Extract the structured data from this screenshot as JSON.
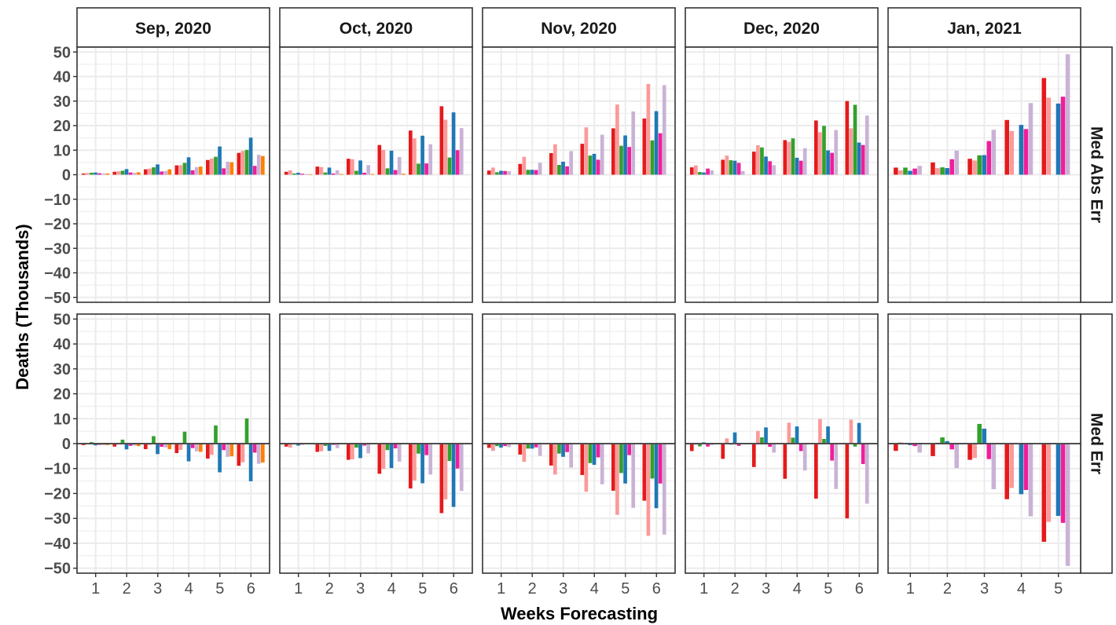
{
  "chart_data": {
    "type": "bar",
    "xlabel": "Weeks Forecasting",
    "ylabel": "Deaths (Thousands)",
    "ylim": [
      -52,
      52
    ],
    "yticks": [
      -50,
      -40,
      -30,
      -20,
      -10,
      0,
      10,
      20,
      30,
      40,
      50
    ],
    "y_tick_labels": [
      "−50",
      "−40",
      "−30",
      "−20",
      "−10",
      "0",
      "10",
      "20",
      "30",
      "40",
      "50"
    ],
    "grid": true,
    "legend": "none",
    "row_facets": [
      "Med Abs Err",
      "Med Err"
    ],
    "column_facets": [
      "Sep, 2020",
      "Oct, 2020",
      "Nov, 2020",
      "Dec, 2020",
      "Jan, 2021"
    ],
    "series_colors": [
      "#E41A1C",
      "#FB9A99",
      "#33A02C",
      "#1F78B4",
      "#F01E9B",
      "#CAB2D6",
      "#FF7F00"
    ],
    "panels": [
      {
        "month": "Sep, 2020",
        "weeks": [
          "1",
          "2",
          "3",
          "4",
          "5",
          "6"
        ],
        "med_abs_err": [
          [
            0.5,
            0.7,
            0.8,
            0.9,
            0.6,
            0.5,
            0.5
          ],
          [
            1.2,
            1.4,
            1.6,
            2.3,
            0.9,
            0.8,
            1.0
          ],
          [
            2.2,
            2.5,
            3.0,
            4.2,
            1.3,
            1.5,
            2.2
          ],
          [
            3.8,
            3.9,
            4.8,
            7.1,
            1.8,
            3.1,
            3.3
          ],
          [
            6.0,
            6.6,
            7.3,
            11.5,
            2.6,
            5.3,
            5.1
          ],
          [
            8.9,
            9.7,
            10.1,
            15.1,
            3.6,
            8.1,
            7.6
          ]
        ],
        "med_err": [
          [
            -0.6,
            -0.2,
            0.6,
            -0.7,
            -0.5,
            -0.6,
            -0.6
          ],
          [
            -1.2,
            -0.2,
            1.6,
            -2.3,
            -0.9,
            -0.8,
            -1.0
          ],
          [
            -2.2,
            -0.5,
            3.0,
            -4.2,
            -1.3,
            -1.5,
            -2.2
          ],
          [
            -3.8,
            -2.5,
            4.8,
            -7.1,
            -1.8,
            -3.1,
            -3.3
          ],
          [
            -6.0,
            -4.5,
            7.3,
            -11.5,
            -2.6,
            -5.3,
            -5.1
          ],
          [
            -8.9,
            -7.5,
            10.1,
            -15.1,
            -3.6,
            -8.1,
            -7.6
          ]
        ]
      },
      {
        "month": "Oct, 2020",
        "weeks": [
          "1",
          "2",
          "3",
          "4",
          "5",
          "6"
        ],
        "med_abs_err": [
          [
            1.2,
            1.8,
            0.5,
            0.8,
            0.4,
            0.3,
            0.2
          ],
          [
            3.3,
            3.1,
            0.9,
            2.9,
            0.5,
            1.8,
            0.3
          ],
          [
            6.5,
            6.3,
            1.6,
            5.8,
            0.8,
            3.9,
            0.3
          ],
          [
            12.1,
            10.1,
            2.6,
            9.8,
            1.9,
            7.2,
            0.4
          ],
          [
            18.0,
            14.8,
            4.5,
            15.9,
            4.6,
            12.4,
            0.0
          ],
          [
            27.9,
            22.4,
            7.0,
            25.4,
            10.0,
            19.0,
            0.0
          ]
        ],
        "med_err": [
          [
            -1.2,
            -1.6,
            -0.3,
            -0.8,
            -0.4,
            -0.3,
            0.0
          ],
          [
            -3.3,
            -3.1,
            -0.9,
            -2.9,
            -0.5,
            -1.8,
            0.0
          ],
          [
            -6.5,
            -6.3,
            -1.6,
            -5.8,
            -0.8,
            -3.9,
            0.0
          ],
          [
            -12.1,
            -10.1,
            -2.6,
            -9.8,
            -1.9,
            -7.2,
            0.0
          ],
          [
            -18.0,
            -14.8,
            -4.0,
            -15.9,
            -4.6,
            -12.4,
            0.0
          ],
          [
            -27.9,
            -22.4,
            -7.0,
            -25.4,
            -10.0,
            -19.0,
            0.0
          ]
        ]
      },
      {
        "month": "Nov, 2020",
        "weeks": [
          "1",
          "2",
          "3",
          "4",
          "5",
          "6"
        ],
        "med_abs_err": [
          [
            1.7,
            2.9,
            1.0,
            1.6,
            1.5,
            1.4,
            0.0
          ],
          [
            4.4,
            7.3,
            2.0,
            2.0,
            1.9,
            4.9,
            0.0
          ],
          [
            8.8,
            12.4,
            4.0,
            5.3,
            3.4,
            9.6,
            0.0
          ],
          [
            12.6,
            19.3,
            7.8,
            8.5,
            6.1,
            16.3,
            0.0
          ],
          [
            18.9,
            28.6,
            11.8,
            16.0,
            11.3,
            25.8,
            0.0
          ],
          [
            22.9,
            37.0,
            14.0,
            25.9,
            16.9,
            36.5,
            0.0
          ]
        ],
        "med_err": [
          [
            -1.7,
            -2.9,
            -1.0,
            -1.6,
            -1.0,
            -1.4,
            0.0
          ],
          [
            -4.4,
            -7.3,
            -2.0,
            -2.0,
            -1.5,
            -4.9,
            0.0
          ],
          [
            -8.8,
            -12.4,
            -4.0,
            -5.3,
            -3.4,
            -9.6,
            0.0
          ],
          [
            -12.6,
            -19.3,
            -7.8,
            -8.5,
            -5.5,
            -16.3,
            0.0
          ],
          [
            -18.9,
            -28.6,
            -11.8,
            -16.0,
            -4.6,
            -25.8,
            0.0
          ],
          [
            -22.9,
            -37.0,
            -14.0,
            -25.9,
            -16.0,
            -36.5,
            0.0
          ]
        ]
      },
      {
        "month": "Dec, 2020",
        "weeks": [
          "1",
          "2",
          "3",
          "4",
          "5",
          "6"
        ],
        "med_abs_err": [
          [
            3.0,
            3.8,
            1.1,
            0.9,
            2.5,
            1.8,
            0.0
          ],
          [
            6.1,
            7.8,
            5.9,
            5.7,
            4.8,
            1.5,
            0.0
          ],
          [
            9.4,
            12.0,
            11.1,
            7.4,
            5.5,
            3.9,
            0.0
          ],
          [
            14.1,
            13.4,
            14.8,
            6.9,
            5.7,
            10.8,
            0.0
          ],
          [
            22.1,
            17.3,
            19.9,
            9.9,
            8.9,
            18.2,
            0.0
          ],
          [
            30.0,
            18.9,
            28.5,
            13.1,
            12.1,
            24.1,
            0.0
          ]
        ],
        "med_err": [
          [
            -3.0,
            -0.4,
            -1.1,
            0.5,
            -1.2,
            -0.6,
            0.0
          ],
          [
            -6.1,
            2.1,
            -0.4,
            4.5,
            -0.9,
            -0.2,
            0.0
          ],
          [
            -9.4,
            5.1,
            2.5,
            6.5,
            -1.3,
            -3.6,
            0.0
          ],
          [
            -14.1,
            8.4,
            2.4,
            6.9,
            -3.0,
            -10.8,
            0.0
          ],
          [
            -22.1,
            9.9,
            1.9,
            6.9,
            -6.8,
            -18.2,
            0.0
          ],
          [
            -30.0,
            9.6,
            -1.2,
            8.3,
            -8.2,
            -24.1,
            0.0
          ]
        ]
      },
      {
        "month": "Jan, 2021",
        "weeks": [
          "1",
          "2",
          "3",
          "4",
          "5"
        ],
        "med_abs_err": [
          [
            2.9,
            1.8,
            2.9,
            1.6,
            2.5,
            3.6,
            0.0
          ],
          [
            5.0,
            2.7,
            3.0,
            2.7,
            6.3,
            9.8,
            0.0
          ],
          [
            6.5,
            5.8,
            7.9,
            8.0,
            13.7,
            18.3,
            0.0
          ],
          [
            22.3,
            17.8,
            0.0,
            20.3,
            18.6,
            29.2,
            0.0
          ],
          [
            39.4,
            31.4,
            0.0,
            29.0,
            31.8,
            49.1,
            0.0
          ]
        ],
        "med_err": [
          [
            -2.9,
            0.5,
            0.0,
            -0.6,
            -1.0,
            -3.6,
            0.0
          ],
          [
            -5.0,
            0.4,
            2.5,
            1.0,
            -2.3,
            -9.8,
            0.0
          ],
          [
            -6.5,
            -5.8,
            7.9,
            6.0,
            -6.2,
            -18.3,
            0.0
          ],
          [
            -22.3,
            -17.8,
            0.0,
            -20.3,
            -18.6,
            -29.2,
            0.0
          ],
          [
            -39.4,
            -31.4,
            0.0,
            -29.0,
            -31.8,
            -49.1,
            0.0
          ]
        ]
      }
    ]
  }
}
